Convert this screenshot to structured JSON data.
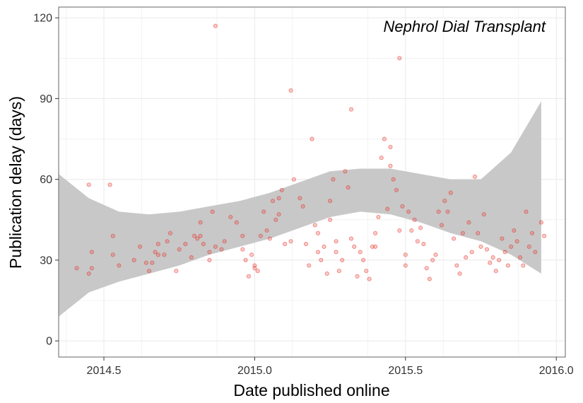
{
  "chart_data": {
    "type": "scatter",
    "title": "",
    "annotation": "Nephrol Dial Transplant",
    "xlabel": "Date published online",
    "ylabel": "Publication delay (days)",
    "xlim": [
      2014.35,
      2016.03
    ],
    "ylim": [
      -6,
      124
    ],
    "x_ticks": [
      2014.5,
      2015.0,
      2015.5,
      2016.0
    ],
    "x_tick_labels": [
      "2014.5",
      "2015.0",
      "2015.5",
      "2016.0"
    ],
    "y_ticks": [
      0,
      30,
      60,
      90,
      120
    ],
    "y_tick_labels": [
      "0",
      "30",
      "60",
      "90",
      "120"
    ],
    "grid": true,
    "legend": "none",
    "colors": {
      "points": "#e8322a",
      "band": "#c8c8c8",
      "grid": "#ebebeb",
      "frame": "#7f7f7f"
    },
    "series": [
      {
        "values": [
          [
            2014.41,
            27
          ],
          [
            2014.45,
            58
          ],
          [
            2014.45,
            25
          ],
          [
            2014.46,
            33
          ],
          [
            2014.46,
            27
          ],
          [
            2014.52,
            58
          ],
          [
            2014.53,
            39
          ],
          [
            2014.53,
            32
          ],
          [
            2014.55,
            28
          ],
          [
            2014.6,
            30
          ],
          [
            2014.62,
            35
          ],
          [
            2014.64,
            29
          ],
          [
            2014.65,
            26
          ],
          [
            2014.66,
            29
          ],
          [
            2014.67,
            33
          ],
          [
            2014.68,
            32
          ],
          [
            2014.68,
            36
          ],
          [
            2014.7,
            32
          ],
          [
            2014.71,
            37
          ],
          [
            2014.72,
            40
          ],
          [
            2014.74,
            26
          ],
          [
            2014.75,
            34
          ],
          [
            2014.77,
            36
          ],
          [
            2014.79,
            31
          ],
          [
            2014.8,
            39
          ],
          [
            2014.81,
            38
          ],
          [
            2014.82,
            44
          ],
          [
            2014.82,
            39
          ],
          [
            2014.83,
            36
          ],
          [
            2014.85,
            30
          ],
          [
            2014.85,
            33
          ],
          [
            2014.86,
            48
          ],
          [
            2014.87,
            35
          ],
          [
            2014.89,
            34
          ],
          [
            2014.9,
            37
          ],
          [
            2014.92,
            46
          ],
          [
            2014.94,
            44
          ],
          [
            2014.96,
            39
          ],
          [
            2014.96,
            34
          ],
          [
            2014.97,
            30
          ],
          [
            2014.98,
            24
          ],
          [
            2014.99,
            32
          ],
          [
            2015.0,
            28
          ],
          [
            2015.0,
            27
          ],
          [
            2015.01,
            26
          ],
          [
            2015.02,
            39
          ],
          [
            2014.87,
            117
          ],
          [
            2015.03,
            48
          ],
          [
            2015.04,
            41
          ],
          [
            2015.05,
            38
          ],
          [
            2015.06,
            52
          ],
          [
            2015.07,
            45
          ],
          [
            2015.08,
            53
          ],
          [
            2015.08,
            47
          ],
          [
            2015.09,
            56
          ],
          [
            2015.1,
            36
          ],
          [
            2015.12,
            37
          ],
          [
            2015.12,
            93
          ],
          [
            2015.13,
            60
          ],
          [
            2015.15,
            53
          ],
          [
            2015.16,
            50
          ],
          [
            2015.17,
            36
          ],
          [
            2015.18,
            28
          ],
          [
            2015.19,
            75
          ],
          [
            2015.2,
            43
          ],
          [
            2015.21,
            40
          ],
          [
            2015.21,
            33
          ],
          [
            2015.22,
            30
          ],
          [
            2015.23,
            35
          ],
          [
            2015.24,
            25
          ],
          [
            2015.25,
            52
          ],
          [
            2015.25,
            45
          ],
          [
            2015.26,
            60
          ],
          [
            2015.27,
            37
          ],
          [
            2015.27,
            33
          ],
          [
            2015.28,
            26
          ],
          [
            2015.29,
            30
          ],
          [
            2015.3,
            63
          ],
          [
            2015.31,
            57
          ],
          [
            2015.32,
            38
          ],
          [
            2015.32,
            86
          ],
          [
            2015.33,
            35
          ],
          [
            2015.34,
            24
          ],
          [
            2015.35,
            33
          ],
          [
            2015.36,
            30
          ],
          [
            2015.37,
            26
          ],
          [
            2015.38,
            23
          ],
          [
            2015.39,
            35
          ],
          [
            2015.4,
            40
          ],
          [
            2015.4,
            35
          ],
          [
            2015.41,
            46
          ],
          [
            2015.42,
            68
          ],
          [
            2015.43,
            75
          ],
          [
            2015.44,
            49
          ],
          [
            2015.45,
            72
          ],
          [
            2015.45,
            65
          ],
          [
            2015.46,
            60
          ],
          [
            2015.47,
            56
          ],
          [
            2015.48,
            41
          ],
          [
            2015.49,
            50
          ],
          [
            2015.5,
            32
          ],
          [
            2015.5,
            28
          ],
          [
            2015.51,
            48
          ],
          [
            2015.52,
            41
          ],
          [
            2015.53,
            45
          ],
          [
            2015.54,
            37
          ],
          [
            2015.55,
            42
          ],
          [
            2015.56,
            36
          ],
          [
            2015.57,
            27
          ],
          [
            2015.58,
            23
          ],
          [
            2015.59,
            30
          ],
          [
            2015.6,
            32
          ],
          [
            2015.61,
            48
          ],
          [
            2015.62,
            43
          ],
          [
            2015.63,
            52
          ],
          [
            2015.64,
            48
          ],
          [
            2015.65,
            55
          ],
          [
            2015.66,
            38
          ],
          [
            2015.67,
            28
          ],
          [
            2015.68,
            25
          ],
          [
            2015.69,
            40
          ],
          [
            2015.7,
            31
          ],
          [
            2015.71,
            44
          ],
          [
            2015.72,
            33
          ],
          [
            2015.73,
            61
          ],
          [
            2015.74,
            40
          ],
          [
            2015.75,
            35
          ],
          [
            2015.76,
            47
          ],
          [
            2015.77,
            34
          ],
          [
            2015.78,
            29
          ],
          [
            2015.79,
            31
          ],
          [
            2015.8,
            26
          ],
          [
            2015.81,
            30
          ],
          [
            2015.82,
            38
          ],
          [
            2015.83,
            33
          ],
          [
            2015.84,
            28
          ],
          [
            2015.85,
            35
          ],
          [
            2015.86,
            41
          ],
          [
            2015.87,
            37
          ],
          [
            2015.88,
            31
          ],
          [
            2015.89,
            28
          ],
          [
            2015.9,
            48
          ],
          [
            2015.91,
            35
          ],
          [
            2015.92,
            40
          ],
          [
            2015.93,
            33
          ],
          [
            2015.95,
            44
          ],
          [
            2015.96,
            39
          ],
          [
            2015.48,
            105
          ]
        ]
      }
    ],
    "smooth_band": {
      "x": [
        2014.35,
        2014.45,
        2014.55,
        2014.65,
        2014.75,
        2014.85,
        2014.95,
        2015.05,
        2015.15,
        2015.25,
        2015.35,
        2015.45,
        2015.55,
        2015.65,
        2015.75,
        2015.85,
        2015.95
      ],
      "upper": [
        62,
        53,
        48,
        47,
        48,
        50,
        52,
        55,
        59,
        63,
        64,
        64,
        62,
        60,
        60,
        70,
        89
      ],
      "lower": [
        9,
        18,
        22,
        25,
        28,
        32,
        35,
        38,
        42,
        46,
        48,
        47,
        44,
        40,
        37,
        32,
        25
      ]
    }
  }
}
